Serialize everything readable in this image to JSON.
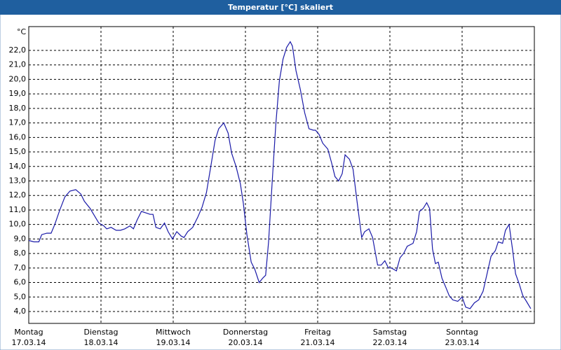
{
  "chart_data": {
    "type": "line",
    "title": "Temperatur [°C] skaliert",
    "y_unit": "°C",
    "x": [
      0.0,
      0.07,
      0.14,
      0.18,
      0.25,
      0.31,
      0.36,
      0.43,
      0.5,
      0.57,
      0.65,
      0.72,
      0.77,
      0.85,
      0.91,
      0.97,
      1.04,
      1.08,
      1.14,
      1.21,
      1.27,
      1.33,
      1.4,
      1.45,
      1.5,
      1.56,
      1.62,
      1.68,
      1.72,
      1.76,
      1.82,
      1.88,
      1.93,
      1.99,
      2.05,
      2.11,
      2.15,
      2.2,
      2.27,
      2.34,
      2.4,
      2.46,
      2.52,
      2.58,
      2.63,
      2.7,
      2.76,
      2.81,
      2.87,
      2.93,
      2.97,
      3.02,
      3.08,
      3.13,
      3.19,
      3.24,
      3.28,
      3.32,
      3.37,
      3.42,
      3.47,
      3.52,
      3.57,
      3.62,
      3.65,
      3.7,
      3.76,
      3.82,
      3.88,
      3.94,
      3.97,
      4.02,
      4.07,
      4.14,
      4.19,
      4.24,
      4.29,
      4.34,
      4.38,
      4.44,
      4.49,
      4.54,
      4.61,
      4.65,
      4.71,
      4.76,
      4.83,
      4.88,
      4.93,
      4.98,
      5.02,
      5.09,
      5.14,
      5.19,
      5.24,
      5.32,
      5.37,
      5.41,
      5.46,
      5.51,
      5.55,
      5.59,
      5.63,
      5.67,
      5.72,
      5.78,
      5.82,
      5.87,
      5.94,
      6.0,
      6.05,
      6.11,
      6.17,
      6.23,
      6.29,
      6.35,
      6.4,
      6.46,
      6.5,
      6.56,
      6.6,
      6.65,
      6.7,
      6.74,
      6.79,
      6.84,
      6.89,
      6.95
    ],
    "series": [
      {
        "name": "Temperatur",
        "color": "#1a1aa8",
        "values": [
          8.9,
          8.8,
          8.8,
          9.3,
          9.4,
          9.4,
          10.0,
          11.0,
          11.9,
          12.3,
          12.4,
          12.1,
          11.6,
          11.1,
          10.6,
          10.1,
          9.9,
          9.7,
          9.8,
          9.6,
          9.6,
          9.7,
          9.9,
          9.7,
          10.3,
          10.9,
          10.8,
          10.7,
          10.7,
          9.8,
          9.7,
          10.1,
          9.5,
          9.0,
          9.5,
          9.2,
          9.1,
          9.5,
          9.8,
          10.5,
          11.2,
          12.2,
          14.0,
          15.8,
          16.6,
          17.0,
          16.3,
          14.9,
          14.0,
          12.8,
          11.5,
          9.3,
          7.4,
          6.9,
          6.0,
          6.3,
          6.5,
          8.8,
          12.9,
          16.9,
          19.9,
          21.4,
          22.2,
          22.6,
          22.3,
          20.6,
          19.3,
          17.7,
          16.6,
          16.5,
          16.5,
          16.2,
          15.6,
          15.2,
          14.3,
          13.3,
          13.0,
          13.5,
          14.8,
          14.5,
          13.8,
          11.8,
          9.1,
          9.5,
          9.7,
          9.1,
          7.2,
          7.2,
          7.5,
          7.0,
          7.0,
          6.8,
          7.7,
          8.0,
          8.5,
          8.7,
          9.5,
          10.9,
          11.1,
          11.5,
          11.1,
          8.3,
          7.3,
          7.4,
          6.3,
          5.6,
          5.1,
          4.8,
          4.7,
          5.0,
          4.3,
          4.2,
          4.6,
          4.8,
          5.4,
          6.7,
          7.8,
          8.2,
          8.8,
          8.7,
          9.6,
          10.0,
          8.2,
          6.6,
          5.9,
          5.1,
          4.7,
          4.2
        ]
      }
    ],
    "xlim": [
      0,
      7
    ],
    "xticks": [
      {
        "value": 0,
        "label": "Montag",
        "date": "17.03.14"
      },
      {
        "value": 1,
        "label": "Dienstag",
        "date": "18.03.14"
      },
      {
        "value": 2,
        "label": "Mittwoch",
        "date": "19.03.14"
      },
      {
        "value": 3,
        "label": "Donnerstag",
        "date": "20.03.14"
      },
      {
        "value": 4,
        "label": "Freitag",
        "date": "21.03.14"
      },
      {
        "value": 5,
        "label": "Samstag",
        "date": "22.03.14"
      },
      {
        "value": 6,
        "label": "Sonntag",
        "date": "23.03.14"
      }
    ],
    "ylim": [
      3.18,
      23.64
    ],
    "yticks": [
      {
        "value": 4,
        "label": "4,0"
      },
      {
        "value": 5,
        "label": "5,0"
      },
      {
        "value": 6,
        "label": "6,0"
      },
      {
        "value": 7,
        "label": "7,0"
      },
      {
        "value": 8,
        "label": "8,0"
      },
      {
        "value": 9,
        "label": "9,0"
      },
      {
        "value": 10,
        "label": "10,0"
      },
      {
        "value": 11,
        "label": "11,0"
      },
      {
        "value": 12,
        "label": "12,0"
      },
      {
        "value": 13,
        "label": "13,0"
      },
      {
        "value": 14,
        "label": "14,0"
      },
      {
        "value": 15,
        "label": "15,0"
      },
      {
        "value": 16,
        "label": "16,0"
      },
      {
        "value": 17,
        "label": "17,0"
      },
      {
        "value": 18,
        "label": "18,0"
      },
      {
        "value": 19,
        "label": "19,0"
      },
      {
        "value": 20,
        "label": "20,0"
      },
      {
        "value": 21,
        "label": "21,0"
      },
      {
        "value": 22,
        "label": "22,0"
      }
    ],
    "grid": true
  }
}
